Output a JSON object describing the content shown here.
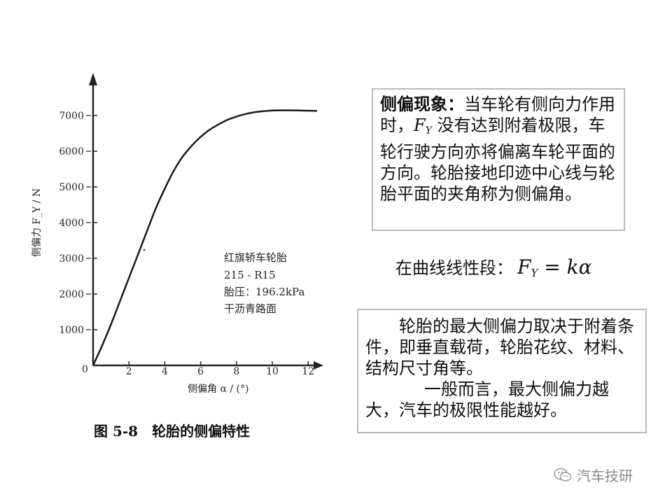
{
  "chart_data": {
    "type": "line",
    "xlabel": "侧偏角 α / (°)",
    "ylabel": "侧偏力 F_Y / N",
    "xlim": [
      0,
      13
    ],
    "ylim": [
      0,
      7600
    ],
    "x_ticks": [
      "0",
      "2",
      "4",
      "6",
      "8",
      "10",
      "12"
    ],
    "x_tick_values": [
      0,
      2,
      4,
      6,
      8,
      10,
      12
    ],
    "y_ticks": [
      "1000",
      "2000",
      "3000",
      "4000",
      "5000",
      "6000",
      "7000"
    ],
    "y_tick_values": [
      1000,
      2000,
      3000,
      4000,
      5000,
      6000,
      7000
    ],
    "origin_label": "0",
    "series": [
      {
        "x": [
          0,
          0.5,
          1,
          1.5,
          2,
          2.5,
          3,
          3.5,
          4,
          4.5,
          5,
          5.5,
          6,
          6.5,
          7,
          7.5,
          8,
          8.5,
          9,
          9.5,
          10,
          10.5,
          11,
          11.5,
          12,
          12.5
        ],
        "y": [
          0,
          550,
          1150,
          1800,
          2450,
          3100,
          3750,
          4400,
          4950,
          5450,
          5850,
          6150,
          6400,
          6600,
          6750,
          6880,
          6970,
          7040,
          7090,
          7120,
          7140,
          7145,
          7145,
          7140,
          7135,
          7130
        ]
      }
    ],
    "annotation_lines": [
      "红旗轿车轮胎",
      "215 - R15",
      "胎压：196.2kPa",
      "干沥青路面"
    ],
    "grid": false
  },
  "caption": "图 5-8　轮胎的侧偏特性",
  "definition_box": {
    "term": "侧偏现象：",
    "text_before": "当车轮有侧向力作用时，",
    "fy_letter": "F",
    "fy_sub": "Y",
    "text_after": " 没有达到附着极限，车轮行驶方向亦将偏离车轮平面的方向。轮胎接地印迹中心线与轮胎平面的夹角称为侧偏角。"
  },
  "formula": {
    "prefix": "在曲线线性段：",
    "lhs": "F",
    "lhs_sub": "Y",
    "rhs": " = kα"
  },
  "max_force_box": {
    "para1": "轮胎的最大侧偏力取决于附着条件，即垂直载荷，轮胎花纹、材料、结构尺寸角等。",
    "para2": "一般而言，最大侧偏力越大，汽车的极限性能越好。"
  },
  "watermark": {
    "icon": "wechat-icon",
    "text": "汽车技研"
  }
}
